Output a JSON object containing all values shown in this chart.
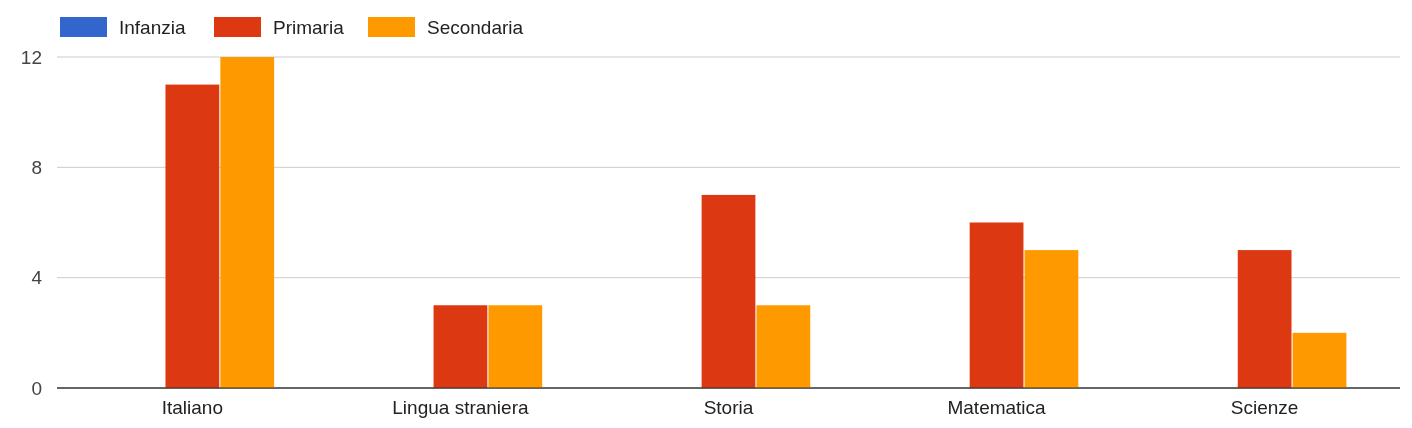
{
  "chart_data": {
    "type": "bar",
    "categories": [
      "Italiano",
      "Lingua straniera",
      "Storia",
      "Matematica",
      "Scienze"
    ],
    "series": [
      {
        "name": "Infanzia",
        "color": "#3366cc",
        "values": [
          0,
          0,
          0,
          0,
          0
        ]
      },
      {
        "name": "Primaria",
        "color": "#dc3912",
        "values": [
          11,
          3,
          7,
          6,
          5
        ]
      },
      {
        "name": "Secondaria",
        "color": "#ff9900",
        "values": [
          12,
          3,
          3,
          5,
          2
        ]
      }
    ],
    "ylim": [
      0,
      12
    ],
    "yticks": [
      0,
      4,
      8,
      12
    ],
    "grid": "y",
    "legend": "top left"
  }
}
